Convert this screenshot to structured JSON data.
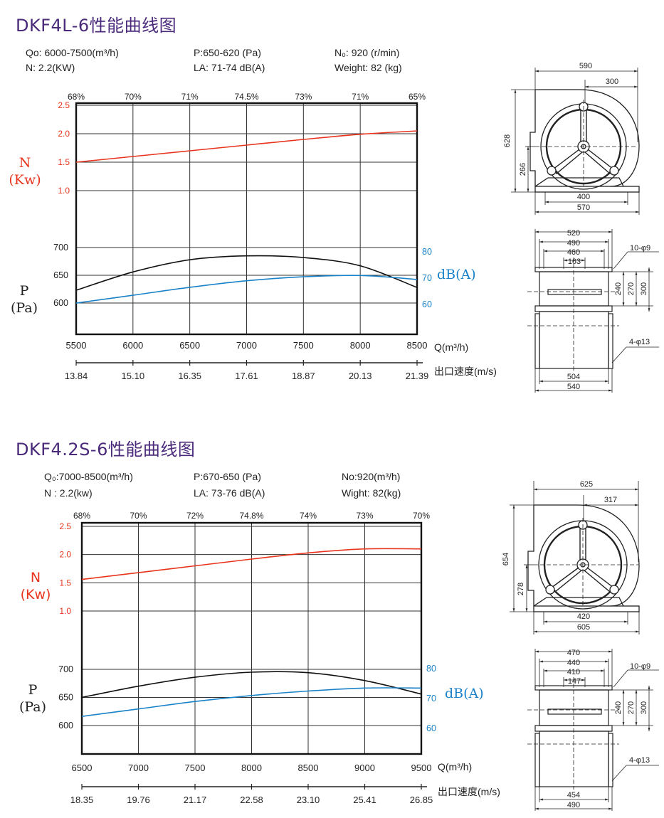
{
  "charts": [
    {
      "title": "DKF4L-6性能曲线图",
      "specs": {
        "q": "Qo: 6000-7500(m³/h)",
        "n": "N: 2.2(KW)",
        "p": "P:650-620 (Pa)",
        "la": "LA: 71-74 dB(A)",
        "n0": "N₀: 920 (r/min)",
        "weight": "Weight: 82 (kg)"
      },
      "n_label": "N",
      "n_unit": "(Kw)",
      "p_label": "P",
      "p_unit": "(Pa)",
      "db_label": "dB(A)",
      "q_label": "Q(m³/h)",
      "velocity_label": "出口速度(m/s)",
      "dim_drawing": {
        "top": {
          "d590": "590",
          "d300": "300",
          "d628": "628",
          "d266": "266",
          "d400": "400",
          "d570": "570"
        },
        "bottom": {
          "d520": "520",
          "d490": "490",
          "d460": "460",
          "d163": "163",
          "hole_top": "10-φ9",
          "d240": "240",
          "d270": "270",
          "d300": "300",
          "hole_bottom": "4-φ13",
          "d504": "504",
          "d540": "540"
        }
      }
    },
    {
      "title": "DKF4.2S-6性能曲线图",
      "specs": {
        "q": "Q₀:7000-8500(m³/h)",
        "n": "N : 2.2(kw)",
        "p": "P:670-650 (Pa)",
        "la": "LA: 73-76 dB(A)",
        "n0": "No:920(m³/h)",
        "weight": "Wight: 82(kg)"
      },
      "n_label": "N",
      "n_unit": "(Kw)",
      "p_label": "P",
      "p_unit": "(Pa)",
      "db_label": "dB(A)",
      "q_label": "Q(m³/h)",
      "velocity_label": "出口速度(m/s)",
      "dim_drawing": {
        "top": {
          "d590": "625",
          "d300": "317",
          "d628": "654",
          "d266": "278",
          "d400": "420",
          "d570": "605"
        },
        "bottom": {
          "d520": "470",
          "d490": "440",
          "d460": "410",
          "d163": "147",
          "hole_top": "10-φ9",
          "d240": "240",
          "d270": "270",
          "d300": "300",
          "hole_bottom": "4-φ13",
          "d504": "454",
          "d540": "490"
        }
      }
    }
  ],
  "colors": {
    "power": "#e8341c",
    "pressure": "#111111",
    "noise": "#1a82c8",
    "title": "#4a2a7a"
  },
  "chart_data": [
    {
      "type": "line",
      "title": "DKF4L-6性能曲线图",
      "xlabel": "Q(m³/h)",
      "x_ticks": [
        5500,
        6000,
        6500,
        7000,
        7500,
        8000,
        8500
      ],
      "xlim": [
        5500,
        8500
      ],
      "velocity_ticks": [
        "13.84",
        "15.10",
        "16.35",
        "17.61",
        "18.87",
        "20.13",
        "21.39"
      ],
      "efficiency_ticks": [
        "68%",
        "70%",
        "71%",
        "74.5%",
        "73%",
        "71%",
        "65%"
      ],
      "n_ticks": [
        "2.5",
        "2.0",
        "1.5",
        "1.0"
      ],
      "n_lim": [
        1.0,
        2.5
      ],
      "p_ticks": [
        "700",
        "650",
        "600"
      ],
      "p_lim": [
        600,
        700
      ],
      "db_ticks": [
        "80",
        "70",
        "60"
      ],
      "db_lim": [
        60,
        80
      ],
      "series": [
        {
          "name": "N",
          "axis": "N",
          "x": [
            5500,
            6000,
            6500,
            7000,
            7500,
            8000,
            8500
          ],
          "values": [
            1.5,
            1.6,
            1.7,
            1.8,
            1.9,
            1.99,
            2.05
          ]
        },
        {
          "name": "P",
          "axis": "P",
          "x": [
            5500,
            6000,
            6500,
            7000,
            7500,
            8000,
            8500
          ],
          "values": [
            623,
            656,
            678,
            685,
            682,
            667,
            628
          ]
        },
        {
          "name": "dB(A)",
          "axis": "dB",
          "x": [
            5500,
            6000,
            6500,
            7000,
            7500,
            8000,
            8500
          ],
          "values": [
            60.5,
            63.5,
            66.5,
            69,
            70.5,
            71,
            69.5
          ]
        }
      ]
    },
    {
      "type": "line",
      "title": "DKF4.2S-6性能曲线图",
      "xlabel": "Q(m³/h)",
      "x_ticks": [
        6500,
        7000,
        7500,
        8000,
        8500,
        9000,
        9500
      ],
      "xlim": [
        6500,
        9500
      ],
      "velocity_ticks": [
        "18.35",
        "19.76",
        "21.17",
        "22.58",
        "23.10",
        "25.41",
        "26.85"
      ],
      "efficiency_ticks": [
        "68%",
        "70%",
        "72%",
        "74.8%",
        "74%",
        "73%",
        "70%"
      ],
      "n_ticks": [
        "2.5",
        "2.0",
        "1.5",
        "1.0"
      ],
      "n_lim": [
        1.0,
        2.5
      ],
      "p_ticks": [
        "700",
        "650",
        "600"
      ],
      "p_lim": [
        600,
        700
      ],
      "db_ticks": [
        "80",
        "70",
        "60"
      ],
      "db_lim": [
        60,
        80
      ],
      "series": [
        {
          "name": "N",
          "axis": "N",
          "x": [
            6500,
            7000,
            7500,
            8000,
            8500,
            9000,
            9500
          ],
          "values": [
            1.56,
            1.68,
            1.8,
            1.92,
            2.03,
            2.1,
            2.1
          ]
        },
        {
          "name": "P",
          "axis": "P",
          "x": [
            6500,
            7000,
            7500,
            8000,
            8500,
            9000,
            9500
          ],
          "values": [
            650,
            670,
            686,
            695,
            694,
            680,
            656
          ]
        },
        {
          "name": "dB(A)",
          "axis": "dB",
          "x": [
            6500,
            7000,
            7500,
            8000,
            8500,
            9000,
            9500
          ],
          "values": [
            64,
            66.5,
            69,
            71,
            72.5,
            73.5,
            73.5
          ]
        }
      ]
    }
  ]
}
